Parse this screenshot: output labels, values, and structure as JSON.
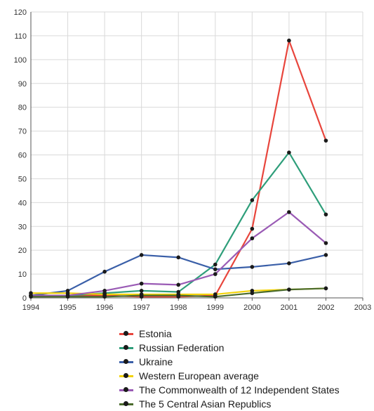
{
  "chart_data": {
    "type": "line",
    "title": "",
    "xlabel": "",
    "ylabel": "",
    "x": [
      1994,
      1995,
      1996,
      1997,
      1998,
      1999,
      2000,
      2001,
      2002
    ],
    "x_ticks": [
      "1994",
      "1995",
      "1996",
      "1997",
      "1998",
      "1999",
      "2000",
      "2001",
      "2002",
      "2003"
    ],
    "y_ticks": [
      "0",
      "10",
      "20",
      "30",
      "40",
      "50",
      "60",
      "70",
      "80",
      "90",
      "100",
      "110",
      "120"
    ],
    "xlim": [
      1994,
      2003
    ],
    "ylim": [
      0,
      120
    ],
    "grid": true,
    "legend_position": "bottom",
    "series": [
      {
        "name": "Estonia",
        "color": "#e8453c",
        "values": [
          1,
          1,
          1,
          0.5,
          0.5,
          1,
          29,
          108,
          66
        ]
      },
      {
        "name": "Russian Federation",
        "color": "#2e9e7a",
        "values": [
          1,
          1,
          2,
          3,
          2.5,
          14,
          41,
          61,
          35
        ]
      },
      {
        "name": "Ukraine",
        "color": "#3a5fa8",
        "values": [
          1,
          3,
          11,
          18,
          17,
          12,
          13,
          14.5,
          18
        ]
      },
      {
        "name": "Western European average",
        "color": "#f2d20a",
        "values": [
          2,
          2,
          1.5,
          1.5,
          1.5,
          1.5,
          3,
          3.5,
          4
        ]
      },
      {
        "name": "The Commonwealth of 12 Independent States",
        "color": "#9a5bb5",
        "values": [
          1,
          1,
          3,
          6,
          5.5,
          10,
          25,
          36,
          23
        ]
      },
      {
        "name": "The 5 Central Asian Republics",
        "color": "#4a6b2c",
        "values": [
          0.5,
          0.5,
          0.5,
          1,
          1,
          0.5,
          2,
          3.5,
          4
        ]
      }
    ]
  }
}
